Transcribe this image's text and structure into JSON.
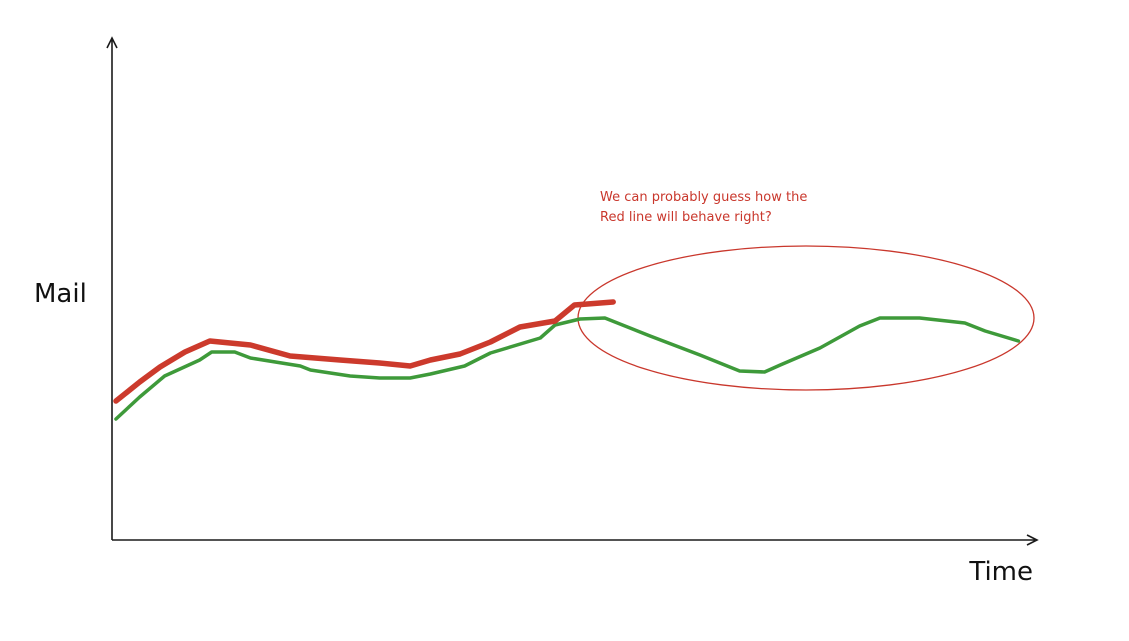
{
  "chart_data": {
    "type": "line",
    "x_label": "Time",
    "y_label": "Mail",
    "annotation": [
      "We can probably guess how the",
      "Red line will behave right?"
    ],
    "annotation_color": "#c9372c",
    "xlim": [
      0,
      100
    ],
    "ylim": [
      0,
      100
    ],
    "series": [
      {
        "color": "#3e9a3a",
        "width": 3.5,
        "x": [
          0.43,
          3.0,
          5.7,
          9.5,
          10.8,
          13.3,
          15.0,
          20.4,
          21.5,
          25.8,
          29.0,
          32.3,
          34.5,
          38.2,
          41.0,
          46.4,
          48.0,
          50.7,
          53.4,
          58.3,
          63.7,
          68.0,
          70.7,
          72.4,
          76.7,
          81.0,
          83.2,
          87.5,
          92.4,
          94.6,
          98.2
        ],
        "values": [
          24.2,
          28.6,
          32.8,
          36.0,
          37.6,
          37.6,
          36.4,
          34.8,
          34.0,
          32.8,
          32.4,
          32.4,
          33.2,
          34.8,
          37.4,
          40.4,
          43.0,
          44.2,
          44.4,
          40.8,
          37.0,
          33.8,
          33.6,
          35.0,
          38.4,
          42.8,
          44.4,
          44.4,
          43.4,
          41.8,
          39.8
        ]
      },
      {
        "color": "#cc3a2c",
        "width": 5.5,
        "x": [
          0.43,
          3.0,
          5.2,
          7.9,
          10.6,
          15.0,
          19.3,
          24.7,
          29.0,
          32.3,
          34.5,
          37.7,
          41.0,
          44.2,
          48.0,
          50.1,
          54.3
        ],
        "values": [
          27.8,
          31.6,
          34.6,
          37.6,
          39.8,
          39.0,
          36.8,
          36.0,
          35.4,
          34.8,
          36.0,
          37.2,
          39.6,
          42.6,
          43.8,
          47.0,
          47.6
        ]
      }
    ]
  }
}
